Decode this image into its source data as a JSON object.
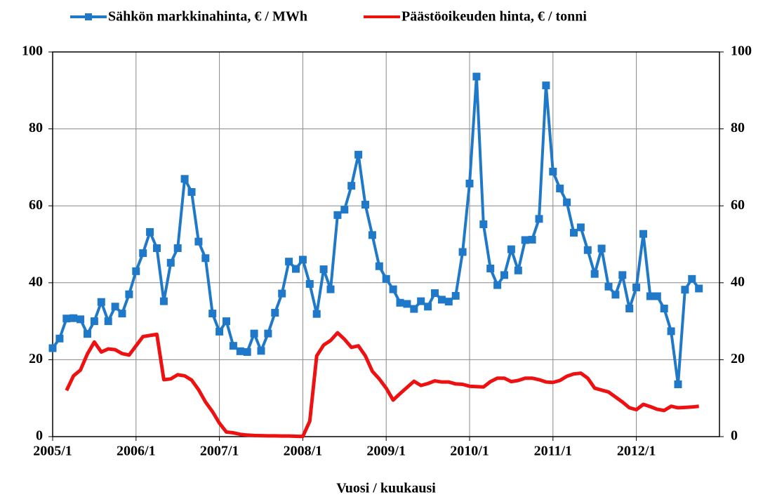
{
  "chart_data": {
    "type": "line",
    "x_label": "Vuosi / kuukausi",
    "categories": [
      "2005/1",
      null,
      null,
      null,
      null,
      null,
      null,
      null,
      null,
      null,
      null,
      null,
      "2006/1",
      null,
      null,
      null,
      null,
      null,
      null,
      null,
      null,
      null,
      null,
      null,
      "2007/1",
      null,
      null,
      null,
      null,
      null,
      null,
      null,
      null,
      null,
      null,
      null,
      "2008/1",
      null,
      null,
      null,
      null,
      null,
      null,
      null,
      null,
      null,
      null,
      null,
      "2009/1",
      null,
      null,
      null,
      null,
      null,
      null,
      null,
      null,
      null,
      null,
      null,
      "2010/1",
      null,
      null,
      null,
      null,
      null,
      null,
      null,
      null,
      null,
      null,
      null,
      "2011/1",
      null,
      null,
      null,
      null,
      null,
      null,
      null,
      null,
      null,
      null,
      null,
      "2012/1",
      null,
      null,
      null,
      null,
      null,
      null,
      null,
      null,
      null
    ],
    "series": [
      {
        "name": "Sähkön markkinahinta,  € / MWh",
        "color": "#1f78c8",
        "marker": "square",
        "values": [
          23,
          25.5,
          30.7,
          30.8,
          30.5,
          26.7,
          30,
          35,
          30,
          33.8,
          32,
          37,
          43,
          47.7,
          53.2,
          49,
          35.2,
          45.2,
          49,
          67,
          63.6,
          50.7,
          46.4,
          32,
          27.3,
          30,
          23.6,
          22.2,
          22,
          26.8,
          22.3,
          26.8,
          32.2,
          37.2,
          45.5,
          43.6,
          46,
          39.7,
          31.9,
          43.5,
          38.3,
          57.6,
          59,
          65.2,
          73.3,
          60.3,
          52.4,
          44.3,
          41,
          38.3,
          34.8,
          34.5,
          33.2,
          35.2,
          33.8,
          37.3,
          35.6,
          35.1,
          36.6,
          48,
          65.8,
          93.6,
          55.2,
          43.7,
          39.4,
          42,
          48.7,
          43.2,
          51.1,
          51.2,
          56.6,
          91.3,
          68.9,
          64.5,
          60.9,
          53,
          54.4,
          48.5,
          42.3,
          48.9,
          39,
          36.9,
          42,
          33.3,
          38.8,
          52.7,
          36.5,
          36.5,
          33.3,
          27.4,
          13.6,
          38.2,
          41,
          38.5
        ]
      },
      {
        "name": "Päästöoikeuden hinta,  € / tonni",
        "color": "#ee1111",
        "axis": "y2",
        "values": [
          null,
          null,
          12,
          15.8,
          17.3,
          21.5,
          24.6,
          22,
          22.8,
          22.6,
          21.6,
          21.2,
          23.6,
          26,
          26.3,
          26.6,
          14.8,
          15,
          16.1,
          15.8,
          14.7,
          12.2,
          9,
          6.5,
          3.5,
          1.2,
          1,
          0.6,
          0.4,
          0.3,
          0.25,
          0.2,
          0.2,
          0.15,
          0.15,
          0.1,
          0.05,
          4,
          21,
          23.8,
          25,
          27,
          25.3,
          23.2,
          23.6,
          21,
          17,
          15,
          12.6,
          9.5,
          11.2,
          12.8,
          14.4,
          13.3,
          13.8,
          14.5,
          14.2,
          14.2,
          13.7,
          13.6,
          13.1,
          13,
          12.9,
          14.3,
          15.2,
          15.2,
          14.3,
          14.6,
          15.2,
          15.2,
          14.8,
          14.2,
          14.1,
          14.6,
          15.7,
          16.3,
          16.5,
          15.2,
          12.6,
          12.1,
          11.6,
          10.3,
          9,
          7.5,
          7,
          8.4,
          7.8,
          7.1,
          6.8,
          7.9,
          7.5,
          7.6,
          7.7,
          7.9
        ]
      }
    ],
    "ylim": [
      0,
      100
    ],
    "yticks": [
      0,
      20,
      40,
      60,
      80,
      100
    ],
    "y2lim": [
      0,
      100
    ],
    "y2ticks": [
      0,
      20,
      40,
      60,
      80,
      100
    ],
    "grid": true,
    "legend": "top"
  }
}
